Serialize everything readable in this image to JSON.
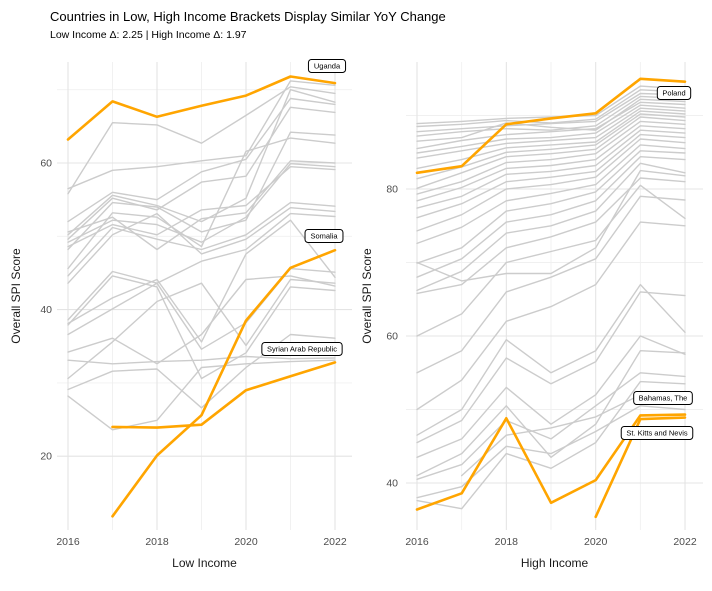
{
  "title": "Countries in Low, High Income Brackets Display Similar YoY Change",
  "subtitle": "Low Income Δ: 2.25 | High Income Δ: 1.97",
  "colors": {
    "highlight": "#FFA500",
    "muted": "#CCCCCC",
    "grid_major": "#E4E4E4",
    "grid_minor": "#F0F0F0",
    "axis_text": "#4D4D4D",
    "text": "#000000",
    "label_fill": "#FFFFFF",
    "label_border": "#000000"
  },
  "chart_data": [
    {
      "type": "line",
      "panel": "low-income",
      "xlabel": "Low Income",
      "ylabel": "Overall SPI Score",
      "x": [
        2016,
        2017,
        2018,
        2019,
        2020,
        2021,
        2022
      ],
      "xtick_labels": [
        "2016",
        "2018",
        "2020",
        "2022"
      ],
      "xticks": [
        2016,
        2018,
        2020,
        2022
      ],
      "yticks": [
        20,
        40,
        60
      ],
      "yminor": [
        30,
        50,
        70
      ],
      "ylim": [
        9.5,
        74
      ],
      "grid": true,
      "legend": "none",
      "highlighted": [
        {
          "name": "Uganda",
          "values": [
            63.2,
            68.4,
            66.3,
            67.8,
            69.2,
            71.8,
            70.9
          ]
        },
        {
          "name": "Somalia",
          "values": [
            null,
            11.8,
            20.1,
            25.6,
            38.5,
            45.7,
            48.1
          ]
        },
        {
          "name": "Syrian Arab Republic",
          "values": [
            null,
            24.0,
            23.9,
            24.3,
            29.0,
            30.9,
            32.8
          ]
        }
      ],
      "background": [
        {
          "values": [
            55.8,
            65.5,
            65.2,
            62.7,
            66.5,
            70.4,
            69.5
          ]
        },
        {
          "values": [
            56.5,
            59.0,
            59.5,
            60.3,
            61.0,
            71.2,
            70.6
          ]
        },
        {
          "values": [
            50.2,
            55.6,
            54.2,
            52.0,
            55.2,
            70.0,
            68.3
          ]
        },
        {
          "values": [
            49.6,
            55.2,
            53.6,
            57.4,
            58.2,
            67.6,
            66.9
          ]
        },
        {
          "values": [
            52.0,
            56.0,
            55.0,
            58.8,
            60.5,
            68.8,
            68.0
          ]
        },
        {
          "values": [
            48.2,
            54.6,
            54.0,
            50.6,
            52.2,
            64.2,
            63.8
          ]
        },
        {
          "values": [
            45.6,
            53.2,
            52.6,
            48.6,
            61.6,
            63.4,
            62.7
          ]
        },
        {
          "values": [
            50.6,
            52.6,
            48.2,
            52.4,
            53.2,
            60.3,
            60.0
          ]
        },
        {
          "values": [
            49.2,
            52.2,
            51.6,
            49.2,
            52.6,
            59.9,
            59.5
          ]
        },
        {
          "values": [
            48.6,
            51.6,
            50.2,
            53.6,
            54.2,
            59.5,
            59.1
          ]
        },
        {
          "values": [
            44.6,
            51.2,
            49.6,
            48.2,
            50.2,
            54.6,
            54.1
          ]
        },
        {
          "values": [
            43.6,
            50.2,
            53.1,
            47.6,
            49.6,
            53.9,
            53.4
          ]
        },
        {
          "values": [
            38.6,
            45.2,
            43.6,
            46.6,
            48.2,
            53.1,
            52.7
          ]
        },
        {
          "values": [
            38.1,
            41.6,
            44.1,
            35.6,
            47.6,
            52.2,
            44.4
          ]
        },
        {
          "values": [
            36.6,
            40.1,
            43.6,
            34.6,
            38.2,
            45.6,
            45.1
          ]
        },
        {
          "values": [
            34.2,
            36.1,
            32.6,
            36.6,
            44.1,
            44.6,
            43.2
          ]
        },
        {
          "values": [
            33.1,
            32.6,
            32.9,
            33.1,
            33.6,
            33.3,
            33.4
          ]
        },
        {
          "values": [
            28.2,
            23.6,
            24.9,
            32.1,
            32.6,
            32.9,
            33.1
          ]
        },
        {
          "values": [
            30.6,
            35.6,
            41.1,
            43.6,
            35.1,
            44.1,
            43.6
          ]
        },
        {
          "values": [
            37.9,
            44.6,
            43.1,
            30.6,
            34.1,
            43.1,
            42.6
          ]
        },
        {
          "values": [
            29.1,
            31.6,
            31.9,
            26.6,
            32.1,
            36.6,
            36.1
          ]
        }
      ]
    },
    {
      "type": "line",
      "panel": "high-income",
      "xlabel": "High Income",
      "ylabel": "Overall SPI Score",
      "x": [
        2016,
        2017,
        2018,
        2019,
        2020,
        2021,
        2022
      ],
      "xtick_labels": [
        "2016",
        "2018",
        "2020",
        "2022"
      ],
      "xticks": [
        2016,
        2018,
        2020,
        2022
      ],
      "yticks": [
        40,
        60,
        80
      ],
      "yminor": [
        50,
        70,
        90
      ],
      "ylim": [
        33,
        97
      ],
      "grid": true,
      "legend": "none",
      "highlighted": [
        {
          "name": "Poland",
          "values": [
            82.2,
            83.1,
            88.8,
            89.6,
            90.3,
            95.0,
            94.6
          ]
        },
        {
          "name": "Bahamas, The",
          "values": [
            36.4,
            38.6,
            48.8,
            37.3,
            40.4,
            49.2,
            49.3
          ]
        },
        {
          "name": "St. Kitts and Nevis",
          "values": [
            null,
            null,
            null,
            null,
            35.4,
            48.7,
            48.9
          ]
        }
      ],
      "background": [
        {
          "values": [
            88.9,
            89.2,
            89.6,
            89.8,
            90.0,
            94.0,
            93.6
          ]
        },
        {
          "values": [
            88.5,
            88.8,
            89.3,
            89.0,
            89.5,
            93.5,
            93.2
          ]
        },
        {
          "values": [
            87.8,
            88.2,
            88.6,
            88.9,
            89.2,
            93.0,
            92.8
          ]
        },
        {
          "values": [
            87.2,
            87.8,
            88.2,
            88.0,
            88.6,
            92.6,
            92.3
          ]
        },
        {
          "values": [
            86.5,
            87.0,
            89.0,
            88.4,
            88.0,
            92.2,
            91.9
          ]
        },
        {
          "values": [
            85.5,
            86.6,
            87.4,
            87.8,
            88.2,
            91.8,
            91.5
          ]
        },
        {
          "values": [
            84.9,
            85.8,
            86.8,
            87.0,
            87.6,
            91.4,
            91.0
          ]
        },
        {
          "values": [
            84.2,
            85.2,
            86.2,
            86.6,
            87.0,
            91.0,
            90.6
          ]
        },
        {
          "values": [
            82.8,
            84.0,
            85.6,
            86.0,
            86.4,
            90.6,
            90.2
          ]
        },
        {
          "values": [
            81.4,
            83.0,
            85.0,
            85.4,
            86.0,
            90.2,
            89.8
          ]
        },
        {
          "values": [
            80.1,
            82.2,
            84.4,
            84.8,
            85.4,
            89.8,
            89.3
          ]
        },
        {
          "values": [
            79.3,
            81.0,
            83.6,
            84.0,
            84.8,
            89.2,
            88.8
          ]
        },
        {
          "values": [
            78.4,
            80.2,
            82.8,
            83.2,
            84.0,
            88.6,
            88.2
          ]
        },
        {
          "values": [
            77.4,
            79.0,
            82.0,
            82.4,
            83.2,
            88.0,
            87.6
          ]
        },
        {
          "values": [
            76.1,
            78.0,
            81.0,
            81.6,
            82.4,
            87.4,
            87.0
          ]
        },
        {
          "values": [
            74.3,
            76.5,
            80.0,
            80.6,
            81.6,
            86.8,
            86.3
          ]
        },
        {
          "values": [
            72.6,
            74.8,
            78.4,
            79.4,
            80.6,
            86.0,
            85.5
          ]
        },
        {
          "values": [
            69.9,
            72.0,
            77.0,
            78.0,
            79.6,
            85.2,
            84.9
          ]
        },
        {
          "values": [
            68.0,
            70.5,
            75.5,
            76.5,
            78.4,
            84.4,
            84.0
          ]
        },
        {
          "values": [
            66.2,
            68.8,
            74.0,
            75.0,
            77.0,
            83.5,
            82.2
          ]
        },
        {
          "values": [
            70.0,
            67.5,
            68.5,
            68.5,
            72.0,
            82.5,
            81.8
          ]
        },
        {
          "values": [
            65.8,
            67.0,
            72.0,
            73.5,
            75.5,
            81.5,
            81.0
          ]
        },
        {
          "values": [
            60.0,
            63.0,
            70.0,
            71.5,
            73.0,
            80.5,
            76.0
          ]
        },
        {
          "values": [
            55.0,
            58.0,
            66.0,
            68.0,
            70.5,
            79.0,
            78.5
          ]
        },
        {
          "values": [
            50.0,
            54.0,
            62.0,
            64.0,
            67.0,
            75.5,
            75.0
          ]
        },
        {
          "values": [
            46.5,
            50.0,
            59.5,
            55.0,
            58.0,
            67.0,
            60.5
          ]
        },
        {
          "values": [
            45.5,
            48.5,
            57.0,
            53.5,
            56.5,
            66.0,
            65.5
          ]
        },
        {
          "values": [
            43.5,
            46.0,
            53.0,
            48.0,
            52.0,
            60.0,
            57.5
          ]
        },
        {
          "values": [
            41.0,
            44.0,
            50.5,
            43.5,
            48.0,
            58.0,
            57.7
          ]
        },
        {
          "values": [
            40.5,
            42.5,
            48.5,
            46.0,
            50.5,
            55.0,
            54.5
          ]
        },
        {
          "values": [
            37.6,
            36.5,
            44.0,
            42.0,
            45.5,
            53.8,
            53.5
          ]
        },
        {
          "values": [
            null,
            41.0,
            46.5,
            47.5,
            49.0,
            52.0,
            51.5
          ]
        },
        {
          "values": [
            38.0,
            39.5,
            45.0,
            44.0,
            47.0,
            50.5,
            50.0
          ]
        }
      ]
    }
  ]
}
